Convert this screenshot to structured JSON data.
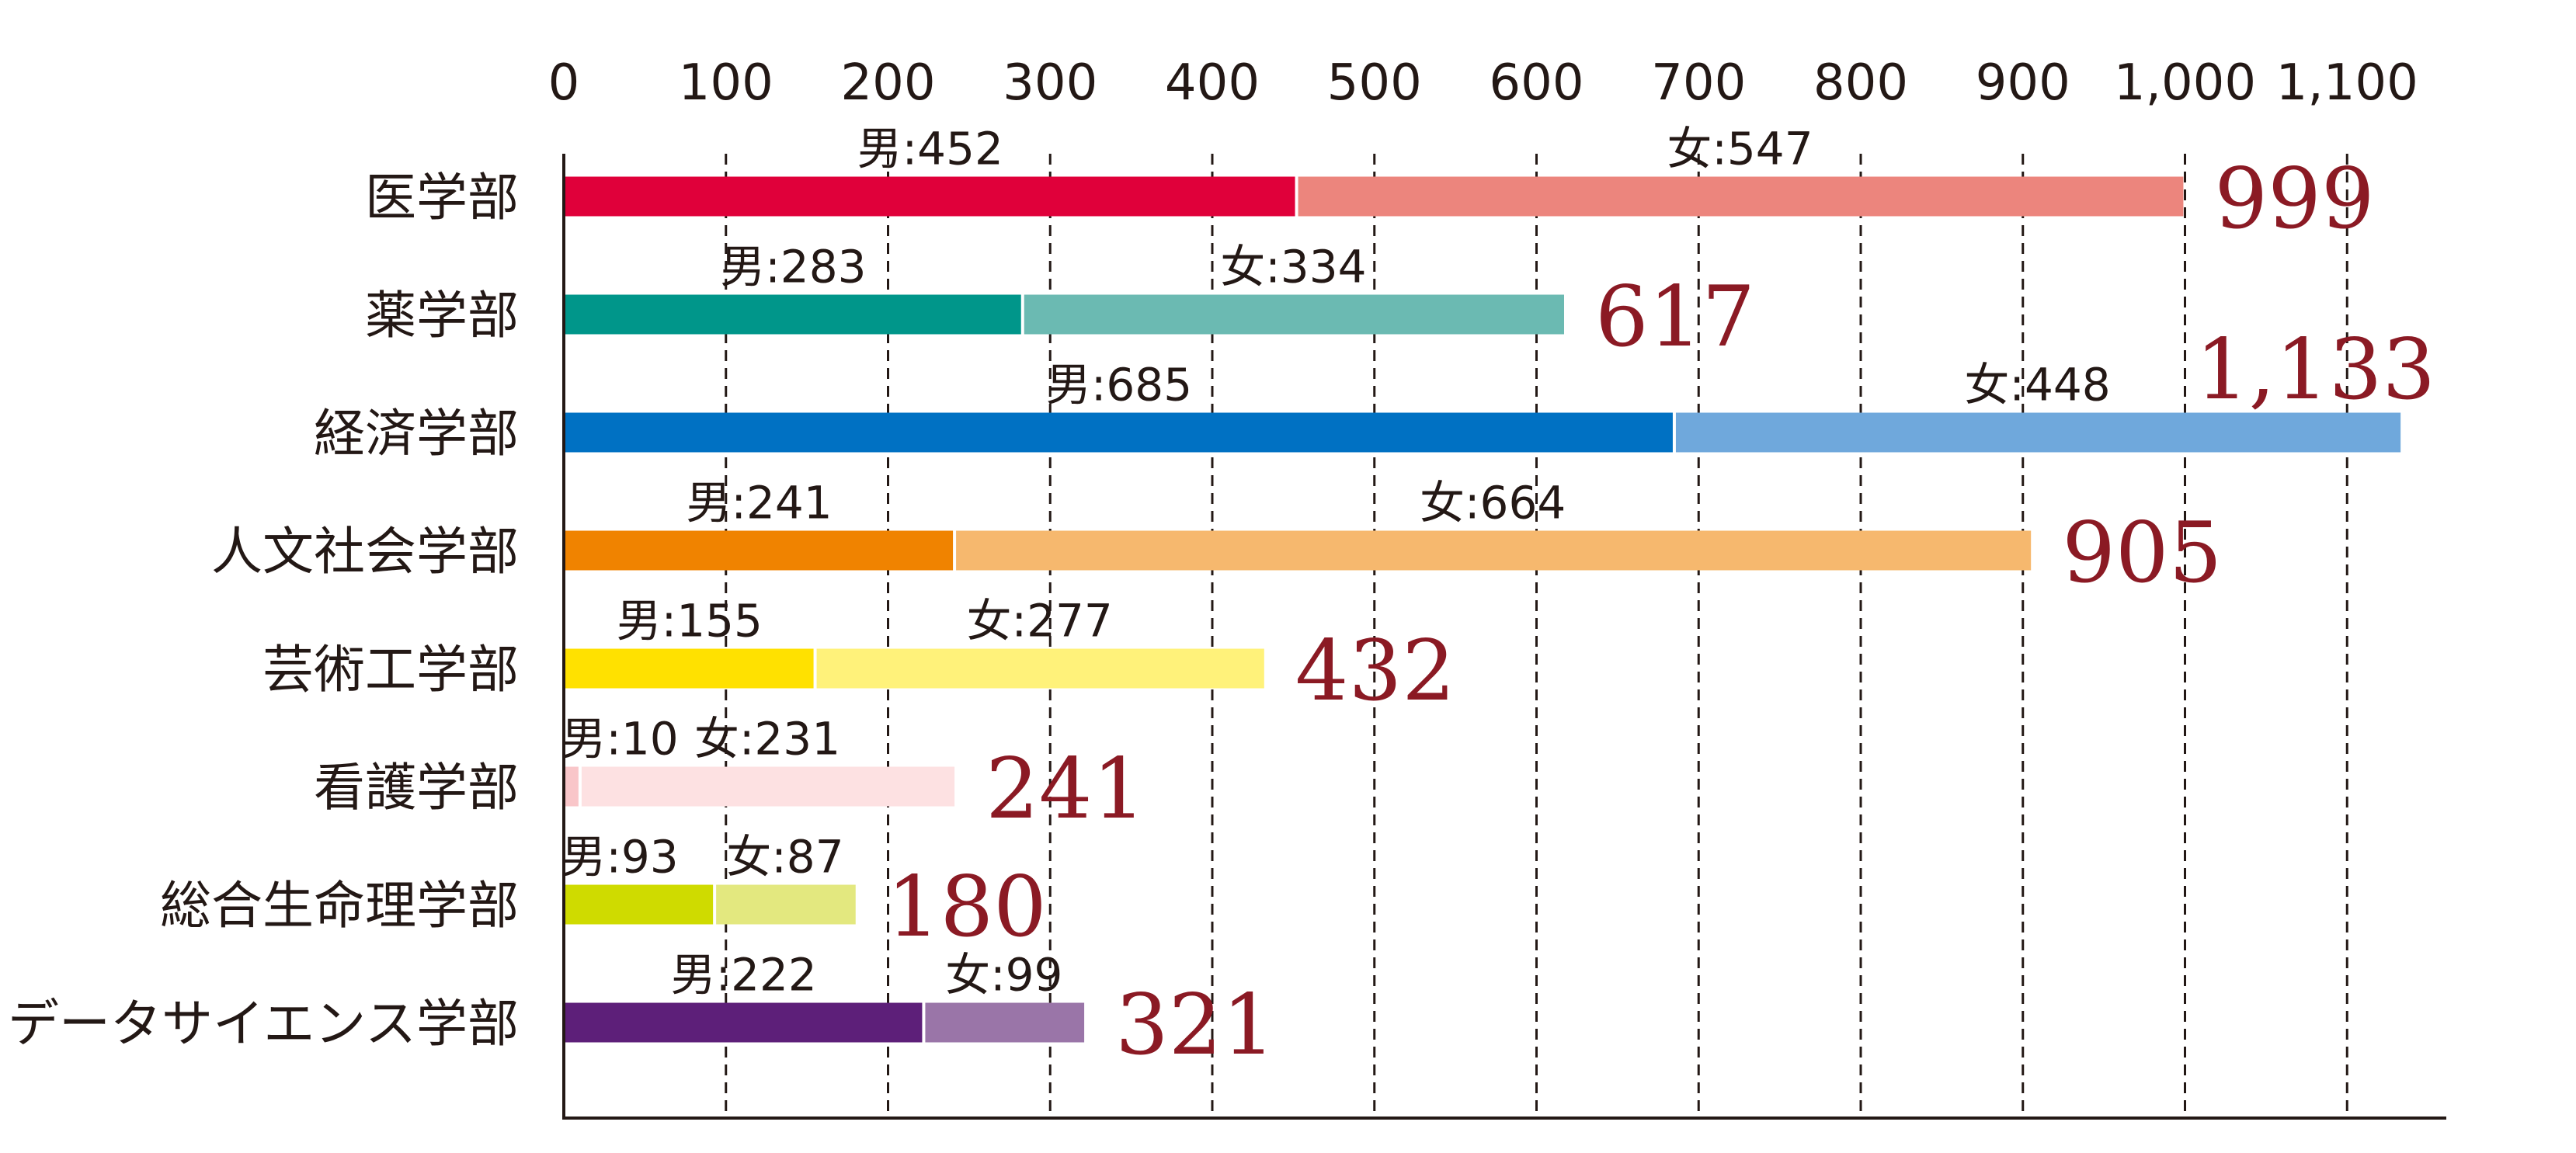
{
  "chart_data": {
    "type": "bar",
    "orientation": "horizontal",
    "stacked": true,
    "xlim": [
      0,
      1150
    ],
    "ticks": [
      0,
      100,
      200,
      300,
      400,
      500,
      600,
      700,
      800,
      900,
      1000,
      1100
    ],
    "tick_labels": [
      "0",
      "100",
      "200",
      "300",
      "400",
      "500",
      "600",
      "700",
      "800",
      "900",
      "1,000",
      "1,100"
    ],
    "grid": "vertical dashed",
    "categories": [
      {
        "name": "医学部",
        "male": 452,
        "female": 547,
        "total": 999,
        "male_label": "男:452",
        "female_label": "女:547",
        "total_label": "999",
        "male_color": "#e0003a",
        "female_color": "#ec857d"
      },
      {
        "name": "薬学部",
        "male": 283,
        "female": 334,
        "total": 617,
        "male_label": "男:283",
        "female_label": "女:334",
        "total_label": "617",
        "male_color": "#00968a",
        "female_color": "#6bbab2"
      },
      {
        "name": "経済学部",
        "male": 685,
        "female": 448,
        "total": 1133,
        "male_label": "男:685",
        "female_label": "女:448",
        "total_label": "1,133",
        "male_color": "#0071c3",
        "female_color": "#6fa8dc"
      },
      {
        "name": "人文社会学部",
        "male": 241,
        "female": 664,
        "total": 905,
        "male_label": "男:241",
        "female_label": "女:664",
        "total_label": "905",
        "male_color": "#f08300",
        "female_color": "#f6b86e"
      },
      {
        "name": "芸術工学部",
        "male": 155,
        "female": 277,
        "total": 432,
        "male_label": "男:155",
        "female_label": "女:277",
        "total_label": "432",
        "male_color": "#ffe100",
        "female_color": "#fff27a"
      },
      {
        "name": "看護学部",
        "male": 10,
        "female": 231,
        "total": 241,
        "male_label": "男:10",
        "female_label": "女:231",
        "total_label": "241",
        "male_color": "#f9c6c9",
        "female_color": "#fde1e2"
      },
      {
        "name": "総合生命理学部",
        "male": 93,
        "female": 87,
        "total": 180,
        "male_label": "男:93",
        "female_label": "女:87",
        "total_label": "180",
        "male_color": "#cfdb00",
        "female_color": "#e3e87f"
      },
      {
        "name": "データサイエンス学部",
        "male": 222,
        "female": 99,
        "total": 321,
        "male_label": "男:222",
        "female_label": "女:99",
        "total_label": "321",
        "male_color": "#5d1f79",
        "female_color": "#9a75a8"
      }
    ]
  }
}
